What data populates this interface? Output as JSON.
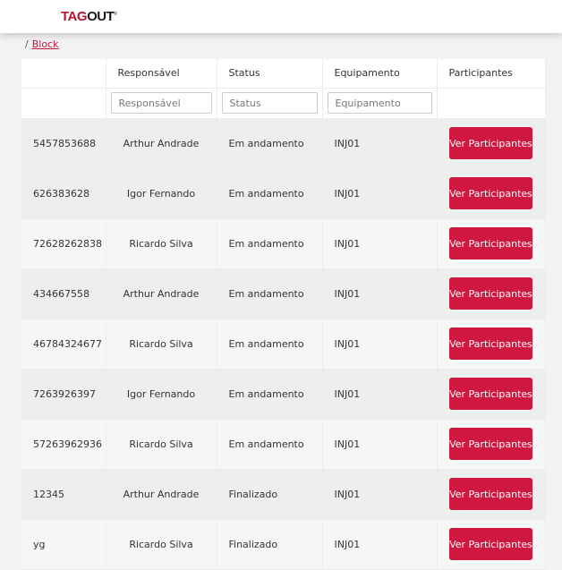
{
  "header": {
    "logo_part1": "TAG",
    "logo_part2": "OUT",
    "logo_mark": "®"
  },
  "breadcrumb": {
    "separator": "/",
    "current": "Block"
  },
  "table": {
    "columns": [
      "",
      "Responsável",
      "Status",
      "Equipamento",
      "Participantes"
    ],
    "filters": {
      "responsavel": "Responsável",
      "status": "Status",
      "equipamento": "Equipamento"
    },
    "button_label": "Ver Participantes",
    "rows": [
      {
        "id": "5457853688",
        "responsavel": "Arthur Andrade",
        "status": "Em andamento",
        "equipamento": "INJ01"
      },
      {
        "id": "626383628",
        "responsavel": "Igor Fernando",
        "status": "Em andamento",
        "equipamento": "INJ01"
      },
      {
        "id": "72628262838",
        "responsavel": "Ricardo Silva",
        "status": "Em andamento",
        "equipamento": "INJ01"
      },
      {
        "id": "434667558",
        "responsavel": "Arthur Andrade",
        "status": "Em andamento",
        "equipamento": "INJ01"
      },
      {
        "id": "46784324677",
        "responsavel": "Ricardo Silva",
        "status": "Em andamento",
        "equipamento": "INJ01"
      },
      {
        "id": "7263926397",
        "responsavel": "Igor Fernando",
        "status": "Em andamento",
        "equipamento": "INJ01"
      },
      {
        "id": "57263962936",
        "responsavel": "Ricardo Silva",
        "status": "Em andamento",
        "equipamento": "INJ01"
      },
      {
        "id": "12345",
        "responsavel": "Arthur Andrade",
        "status": "Finalizado",
        "equipamento": "INJ01"
      },
      {
        "id": "yg",
        "responsavel": "Ricardo Silva",
        "status": "Finalizado",
        "equipamento": "INJ01"
      }
    ]
  },
  "colors": {
    "accent": "#d0173f"
  }
}
